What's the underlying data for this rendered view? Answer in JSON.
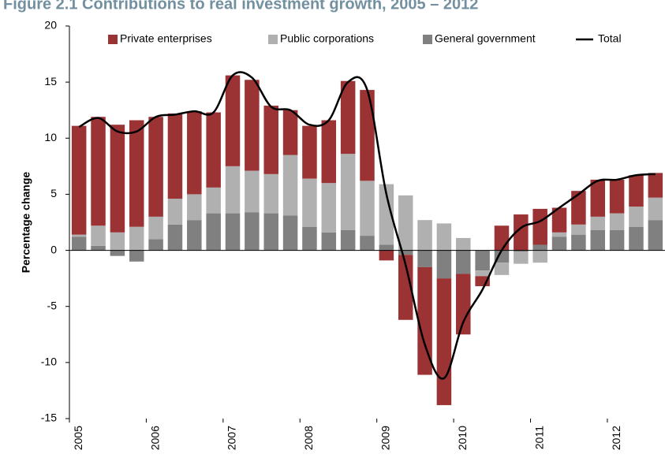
{
  "chart_data": {
    "type": "bar",
    "title": "Figure 2.1  Contributions to real investment growth, 2005 – 2012",
    "y_label": "Percentage change",
    "categories": [
      "2005",
      null,
      null,
      null,
      "2006",
      null,
      null,
      null,
      "2007",
      null,
      null,
      null,
      "2008",
      null,
      null,
      null,
      "2009",
      null,
      null,
      null,
      "2010",
      null,
      null,
      null,
      "2011",
      null,
      null,
      null,
      "2012",
      null,
      null
    ],
    "series": [
      {
        "name": "Private enterprises",
        "type": "bar",
        "color": "#9b3334",
        "values": [
          9.7,
          9.7,
          9.6,
          9.5,
          8.9,
          7.6,
          7.4,
          6.7,
          8.1,
          8.1,
          6.1,
          4.0,
          4.7,
          5.6,
          6.5,
          8.1,
          -0.9,
          -5.8,
          -9.6,
          -11.3,
          -5.4,
          -0.9,
          2.2,
          3.2,
          3.2,
          2.2,
          3.0,
          3.3,
          3.0,
          2.8,
          2.2
        ]
      },
      {
        "name": "Public corporations",
        "type": "bar",
        "color": "#b0b0b0",
        "values": [
          0.2,
          1.8,
          1.6,
          2.1,
          2.0,
          2.3,
          2.3,
          2.3,
          4.2,
          3.7,
          3.5,
          5.4,
          4.3,
          4.4,
          6.8,
          4.9,
          5.4,
          4.9,
          2.7,
          2.4,
          1.1,
          -0.5,
          -1.1,
          -1.1,
          -1.1,
          0.4,
          0.9,
          1.2,
          1.5,
          1.8,
          2.0
        ]
      },
      {
        "name": "General government",
        "type": "bar",
        "color": "#808080",
        "values": [
          1.2,
          0.4,
          -0.5,
          -1.0,
          1.0,
          2.3,
          2.7,
          3.3,
          3.3,
          3.4,
          3.3,
          3.1,
          2.1,
          1.6,
          1.8,
          1.3,
          0.5,
          -0.4,
          -1.5,
          -2.5,
          -2.1,
          -1.8,
          -1.1,
          -0.1,
          0.5,
          1.2,
          1.4,
          1.8,
          1.8,
          2.1,
          2.7
        ]
      },
      {
        "name": "Total",
        "type": "line",
        "color": "#000000",
        "values": [
          11.0,
          11.8,
          10.6,
          10.6,
          11.9,
          12.1,
          12.4,
          12.3,
          15.6,
          15.4,
          12.8,
          12.5,
          11.2,
          11.6,
          15.0,
          14.3,
          5.0,
          -1.3,
          -8.4,
          -11.4,
          -6.4,
          -3.5,
          0.0,
          2.0,
          2.6,
          3.8,
          5.0,
          6.2,
          6.3,
          6.7,
          6.8
        ]
      }
    ],
    "ylim": [
      -15,
      20
    ],
    "yticks": [
      -15,
      -10,
      -5,
      0,
      5,
      10,
      15,
      20
    ]
  }
}
